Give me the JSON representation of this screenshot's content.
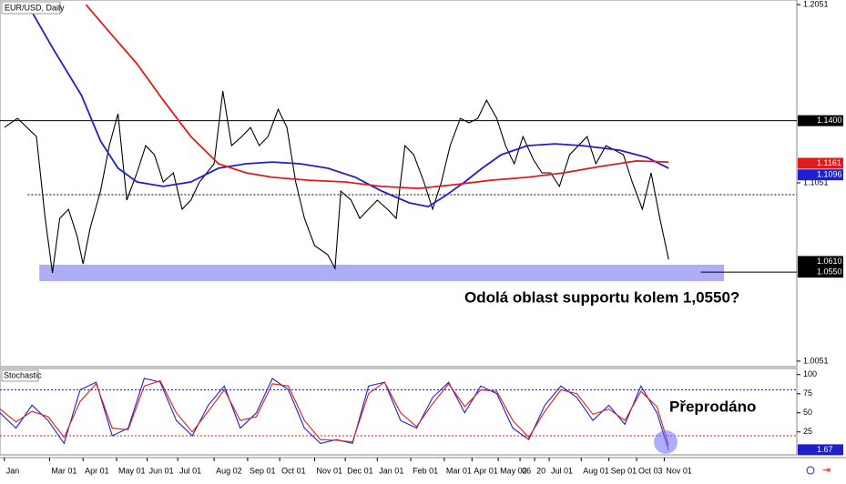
{
  "chart_data": [
    {
      "type": "line",
      "title": "EUR/USD, Daily",
      "xlim": [
        0,
        547
      ],
      "ylim": [
        1.002,
        1.2077
      ],
      "yticks": [
        1.2051,
        1.1051,
        1.0051
      ],
      "xticks": [
        {
          "value": 3,
          "label": "Jan"
        },
        {
          "value": 34,
          "label": "Mar 01"
        },
        {
          "value": 57,
          "label": "Apr 01"
        },
        {
          "value": 80,
          "label": "May 01"
        },
        {
          "value": 101,
          "label": "Jun 01"
        },
        {
          "value": 122,
          "label": "Jul 01"
        },
        {
          "value": 147,
          "label": "Aug 02"
        },
        {
          "value": 170,
          "label": "Sep 01"
        },
        {
          "value": 192,
          "label": "Oct 01"
        },
        {
          "value": 216,
          "label": "Nov 01"
        },
        {
          "value": 237,
          "label": "Dec 01"
        },
        {
          "value": 259,
          "label": "Jan 01"
        },
        {
          "value": 282,
          "label": "Feb 01"
        },
        {
          "value": 305,
          "label": "Mar 01"
        },
        {
          "value": 324,
          "label": "Apr 01"
        },
        {
          "value": 342,
          "label": "May 02"
        },
        {
          "value": 357,
          "label": "06"
        },
        {
          "value": 367,
          "label": "20"
        },
        {
          "value": 377,
          "label": "Jul 01"
        },
        {
          "value": 399,
          "label": "Aug 01"
        },
        {
          "value": 418,
          "label": "Sep 01"
        },
        {
          "value": 437,
          "label": "Oct 03"
        },
        {
          "value": 456,
          "label": "Nov 01"
        }
      ],
      "series": [
        {
          "color": "#000000",
          "x": [
            3,
            12,
            25,
            31,
            36,
            41,
            47,
            53,
            57,
            62,
            69,
            75,
            81,
            87,
            94,
            100,
            106,
            112,
            119,
            125,
            131,
            137,
            147,
            153,
            159,
            166,
            172,
            178,
            184,
            191,
            197,
            203,
            209,
            216,
            225,
            230,
            234,
            241,
            247,
            253,
            259,
            266,
            272,
            278,
            284,
            291,
            297,
            303,
            309,
            316,
            322,
            328,
            334,
            341,
            347,
            353,
            359,
            366,
            372,
            378,
            384,
            391,
            397,
            403,
            409,
            416,
            422,
            428,
            434,
            441,
            447,
            453,
            459
          ],
          "values": [
            1.1362,
            1.1413,
            1.1311,
            1.0852,
            1.0546,
            1.0852,
            1.0903,
            1.075,
            1.0597,
            1.0801,
            1.1005,
            1.126,
            1.1439,
            1.0954,
            1.1107,
            1.126,
            1.1209,
            1.1056,
            1.1107,
            1.0903,
            1.0954,
            1.1056,
            1.1158,
            1.1566,
            1.126,
            1.1311,
            1.1362,
            1.126,
            1.1311,
            1.1464,
            1.1362,
            1.1056,
            1.0852,
            1.0699,
            1.0648,
            1.0571,
            1.1005,
            1.0954,
            1.0852,
            1.0903,
            1.0954,
            1.0903,
            1.0852,
            1.126,
            1.1209,
            1.1056,
            1.0903,
            1.1056,
            1.126,
            1.1413,
            1.1388,
            1.1413,
            1.1515,
            1.1413,
            1.126,
            1.1158,
            1.1311,
            1.1184,
            1.1107,
            1.1107,
            1.1031,
            1.1209,
            1.126,
            1.1311,
            1.1158,
            1.126,
            1.1235,
            1.1209,
            1.1056,
            1.0903,
            1.1107,
            1.0852,
            1.0622
          ]
        },
        {
          "color": "#1f1fcc",
          "x": [
            19,
            37,
            56,
            69,
            81,
            94,
            112,
            131,
            150,
            169,
            187,
            206,
            225,
            244,
            262,
            281,
            294,
            306,
            319,
            331,
            344,
            362,
            381,
            400,
            425,
            444,
            459
          ],
          "values": [
            1.2051,
            1.1796,
            1.1541,
            1.1286,
            1.1133,
            1.1056,
            1.1031,
            1.1056,
            1.1133,
            1.1158,
            1.1168,
            1.1158,
            1.1133,
            1.1082,
            1.1005,
            1.0939,
            1.0918,
            1.098,
            1.1056,
            1.1133,
            1.1209,
            1.126,
            1.127,
            1.126,
            1.1235,
            1.1194,
            1.1133
          ]
        },
        {
          "color": "#e01b1b",
          "x": [
            59,
            75,
            94,
            112,
            131,
            150,
            169,
            187,
            212,
            237,
            262,
            287,
            312,
            337,
            362,
            387,
            412,
            437,
            459
          ],
          "values": [
            1.2051,
            1.1898,
            1.1719,
            1.1515,
            1.1311,
            1.1158,
            1.1107,
            1.1082,
            1.1066,
            1.1056,
            1.1031,
            1.102,
            1.1041,
            1.1066,
            1.1082,
            1.1107,
            1.1143,
            1.1174,
            1.1168
          ]
        }
      ],
      "levels": [
        {
          "value": 1.14,
          "label": "1.1400",
          "color": "#000000"
        },
        {
          "value": 1.1161,
          "label": "1.1161",
          "color": "#e01b1b"
        },
        {
          "value": 1.1096,
          "label": "1.1096",
          "color": "#1f1fcc"
        },
        {
          "value": 1.061,
          "label": "1.0610",
          "color": "#000000"
        },
        {
          "value": 1.055,
          "label": "1.0550",
          "color": "#000000"
        }
      ],
      "zone": [
        1.05,
        1.0592
      ],
      "dashed_level": 1.0985,
      "annotation": "Odolá oblast supportu kolem 1,0550?"
    },
    {
      "type": "line",
      "title": "Stochastic",
      "xlim": [
        0,
        547
      ],
      "ylim": [
        -5,
        108
      ],
      "yticks": [
        100,
        75,
        50,
        25
      ],
      "levels": [
        {
          "value": 80,
          "color": "#1f1fcc"
        },
        {
          "value": 20,
          "color": "#e01b1b"
        }
      ],
      "x": [
        0,
        11,
        22,
        33,
        44,
        55,
        66,
        77,
        88,
        99,
        110,
        121,
        132,
        143,
        154,
        165,
        176,
        187,
        198,
        209,
        220,
        231,
        242,
        253,
        264,
        275,
        286,
        297,
        308,
        319,
        330,
        341,
        352,
        363,
        374,
        385,
        396,
        407,
        418,
        429,
        440,
        451,
        459
      ],
      "series": [
        {
          "color": "#1f1fcc",
          "values": [
            50,
            30,
            60,
            40,
            10,
            80,
            90,
            20,
            30,
            95,
            90,
            40,
            20,
            60,
            85,
            30,
            50,
            95,
            80,
            30,
            10,
            15,
            10,
            85,
            90,
            40,
            30,
            70,
            90,
            50,
            85,
            75,
            30,
            15,
            60,
            85,
            70,
            40,
            60,
            35,
            85,
            50,
            1.67
          ]
        },
        {
          "color": "#e01b1b",
          "values": [
            55,
            38,
            52,
            45,
            18,
            65,
            88,
            30,
            28,
            85,
            92,
            50,
            25,
            52,
            80,
            40,
            45,
            88,
            85,
            40,
            15,
            14,
            12,
            75,
            90,
            50,
            32,
            62,
            88,
            58,
            80,
            78,
            40,
            18,
            52,
            80,
            75,
            48,
            55,
            40,
            78,
            58,
            8
          ]
        }
      ],
      "value_label": {
        "value": 1.67,
        "label": "1.67"
      },
      "annotation": "Přeprodáno"
    }
  ]
}
